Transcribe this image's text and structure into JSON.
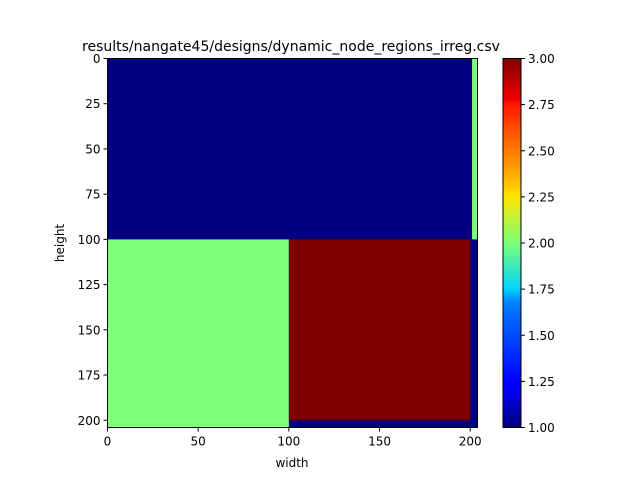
{
  "chart_data": {
    "type": "heatmap",
    "title": "results/nangate45/designs/dynamic_node_regions_irreg.csv",
    "xlabel": "width",
    "ylabel": "height",
    "xlim": [
      0,
      204
    ],
    "ylim": [
      204,
      0
    ],
    "x_ticks": [
      0,
      50,
      100,
      150,
      200
    ],
    "y_ticks": [
      0,
      25,
      50,
      75,
      100,
      125,
      150,
      175,
      200
    ],
    "colormap": "jet",
    "colorbar": {
      "range": [
        1.0,
        3.0
      ],
      "ticks": [
        "1.00",
        "1.25",
        "1.50",
        "1.75",
        "2.00",
        "2.25",
        "2.50",
        "2.75",
        "3.00"
      ]
    },
    "background_value": 1,
    "regions": [
      {
        "x": [
          0,
          100
        ],
        "y": [
          100,
          204
        ],
        "value": 2
      },
      {
        "x": [
          100,
          200
        ],
        "y": [
          100,
          200
        ],
        "value": 3
      },
      {
        "x": [
          201,
          204
        ],
        "y": [
          0,
          100
        ],
        "value": 2
      }
    ]
  }
}
